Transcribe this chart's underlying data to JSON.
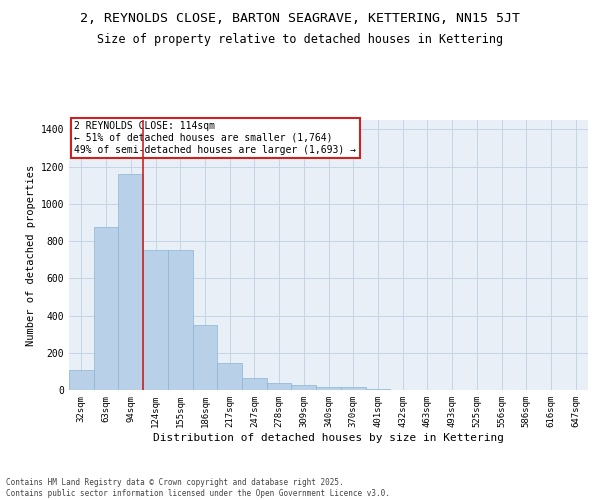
{
  "title": "2, REYNOLDS CLOSE, BARTON SEAGRAVE, KETTERING, NN15 5JT",
  "subtitle": "Size of property relative to detached houses in Kettering",
  "xlabel": "Distribution of detached houses by size in Kettering",
  "ylabel": "Number of detached properties",
  "categories": [
    "32sqm",
    "63sqm",
    "94sqm",
    "124sqm",
    "155sqm",
    "186sqm",
    "217sqm",
    "247sqm",
    "278sqm",
    "309sqm",
    "340sqm",
    "370sqm",
    "401sqm",
    "432sqm",
    "463sqm",
    "493sqm",
    "525sqm",
    "556sqm",
    "586sqm",
    "616sqm",
    "647sqm"
  ],
  "values": [
    110,
    875,
    1160,
    750,
    750,
    350,
    145,
    65,
    37,
    25,
    18,
    15,
    8,
    0,
    0,
    0,
    0,
    0,
    0,
    0,
    0
  ],
  "bar_color": "#b8d0e8",
  "bar_edge_color": "#8ab4d4",
  "vline_color": "#cc2222",
  "annotation_text": "2 REYNOLDS CLOSE: 114sqm\n← 51% of detached houses are smaller (1,764)\n49% of semi-detached houses are larger (1,693) →",
  "annotation_box_color": "#cc2222",
  "bg_color": "#e8eff7",
  "grid_color": "#c5d5e5",
  "ylim": [
    0,
    1450
  ],
  "yticks": [
    0,
    200,
    400,
    600,
    800,
    1000,
    1200,
    1400
  ],
  "footer": "Contains HM Land Registry data © Crown copyright and database right 2025.\nContains public sector information licensed under the Open Government Licence v3.0.",
  "title_fontsize": 9.5,
  "subtitle_fontsize": 8.5,
  "ylabel_fontsize": 7.5,
  "xlabel_fontsize": 8,
  "tick_fontsize": 6.5,
  "annot_fontsize": 7,
  "footer_fontsize": 5.5
}
